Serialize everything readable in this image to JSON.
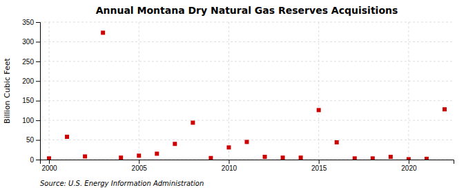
{
  "chart_data": {
    "type": "scatter",
    "title": "Annual Montana Dry Natural Gas Reserves Acquisitions",
    "ylabel": "Billion Cubic Feet",
    "source": "Source: U.S. Energy Information Administration",
    "x": [
      2000,
      2001,
      2002,
      2003,
      2004,
      2005,
      2006,
      2007,
      2008,
      2009,
      2010,
      2011,
      2012,
      2013,
      2014,
      2015,
      2016,
      2017,
      2018,
      2019,
      2020,
      2021,
      2022
    ],
    "values": [
      3,
      58,
      8,
      323,
      5,
      10,
      15,
      40,
      94,
      4,
      31,
      45,
      7,
      5,
      5,
      126,
      44,
      3,
      3,
      7,
      1,
      2,
      128
    ],
    "color": "#cc0000",
    "marker": "square",
    "xlim": [
      1999.5,
      2022.5
    ],
    "ylim": [
      0,
      350
    ],
    "xticks": [
      2000,
      2005,
      2010,
      2015,
      2020
    ],
    "yticks": [
      0,
      50,
      100,
      150,
      200,
      250,
      300,
      350
    ],
    "grid": true
  }
}
